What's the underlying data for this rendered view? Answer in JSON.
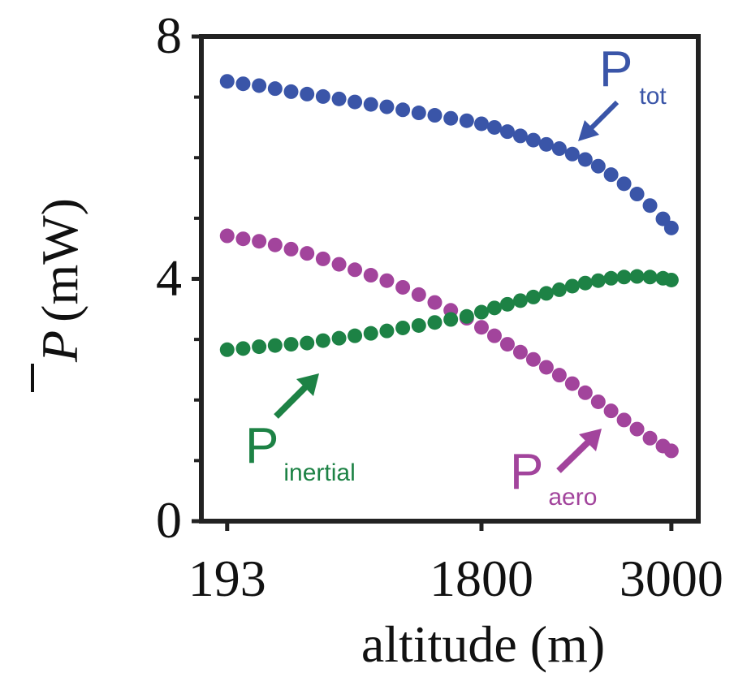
{
  "chart_data": {
    "type": "scatter",
    "title": "",
    "xlabel": "altitude (m)",
    "ylabel": "(mW)",
    "ylabel_symbol": "P",
    "x_ticks": [
      "193",
      "1800",
      "3000"
    ],
    "x_tick_values": [
      193,
      1800,
      3000
    ],
    "y_ticks": [
      "0",
      "4",
      "8"
    ],
    "y_tick_values": [
      0,
      4,
      8
    ],
    "y_minor_ticks": [
      1,
      2,
      3,
      5,
      6,
      7
    ],
    "ylim": [
      0,
      8
    ],
    "xlim": [
      30,
      3170
    ],
    "x": [
      193,
      294,
      395,
      496,
      597,
      698,
      799,
      900,
      1000,
      1101,
      1202,
      1303,
      1404,
      1505,
      1606,
      1707,
      1800,
      1882,
      1964,
      2046,
      2128,
      2210,
      2292,
      2374,
      2456,
      2538,
      2619,
      2701,
      2783,
      2865,
      2947,
      3000
    ],
    "series": [
      {
        "name": "tot",
        "label_main": "P",
        "label_sub": "tot",
        "color": "#3a55a8",
        "values": [
          7.26,
          7.22,
          7.19,
          7.14,
          7.09,
          7.05,
          7.01,
          6.97,
          6.92,
          6.88,
          6.84,
          6.79,
          6.74,
          6.7,
          6.65,
          6.61,
          6.56,
          6.5,
          6.43,
          6.36,
          6.29,
          6.22,
          6.15,
          6.06,
          5.97,
          5.86,
          5.72,
          5.57,
          5.4,
          5.21,
          4.99,
          4.84
        ]
      },
      {
        "name": "aero",
        "label_main": "P",
        "label_sub": "aero",
        "color": "#a2449c",
        "values": [
          4.71,
          4.66,
          4.62,
          4.56,
          4.49,
          4.42,
          4.33,
          4.24,
          4.15,
          4.06,
          3.97,
          3.86,
          3.74,
          3.61,
          3.48,
          3.35,
          3.2,
          3.06,
          2.92,
          2.79,
          2.67,
          2.54,
          2.41,
          2.27,
          2.12,
          1.97,
          1.82,
          1.67,
          1.52,
          1.37,
          1.24,
          1.16
        ]
      },
      {
        "name": "inertial",
        "label_main": "P",
        "label_sub": "inertial",
        "color": "#1d8245",
        "values": [
          2.83,
          2.85,
          2.88,
          2.9,
          2.92,
          2.94,
          2.98,
          3.02,
          3.06,
          3.1,
          3.14,
          3.19,
          3.23,
          3.28,
          3.33,
          3.38,
          3.45,
          3.52,
          3.58,
          3.64,
          3.7,
          3.76,
          3.82,
          3.88,
          3.93,
          3.97,
          4.01,
          4.03,
          4.04,
          4.03,
          4.01,
          3.98
        ]
      }
    ]
  }
}
